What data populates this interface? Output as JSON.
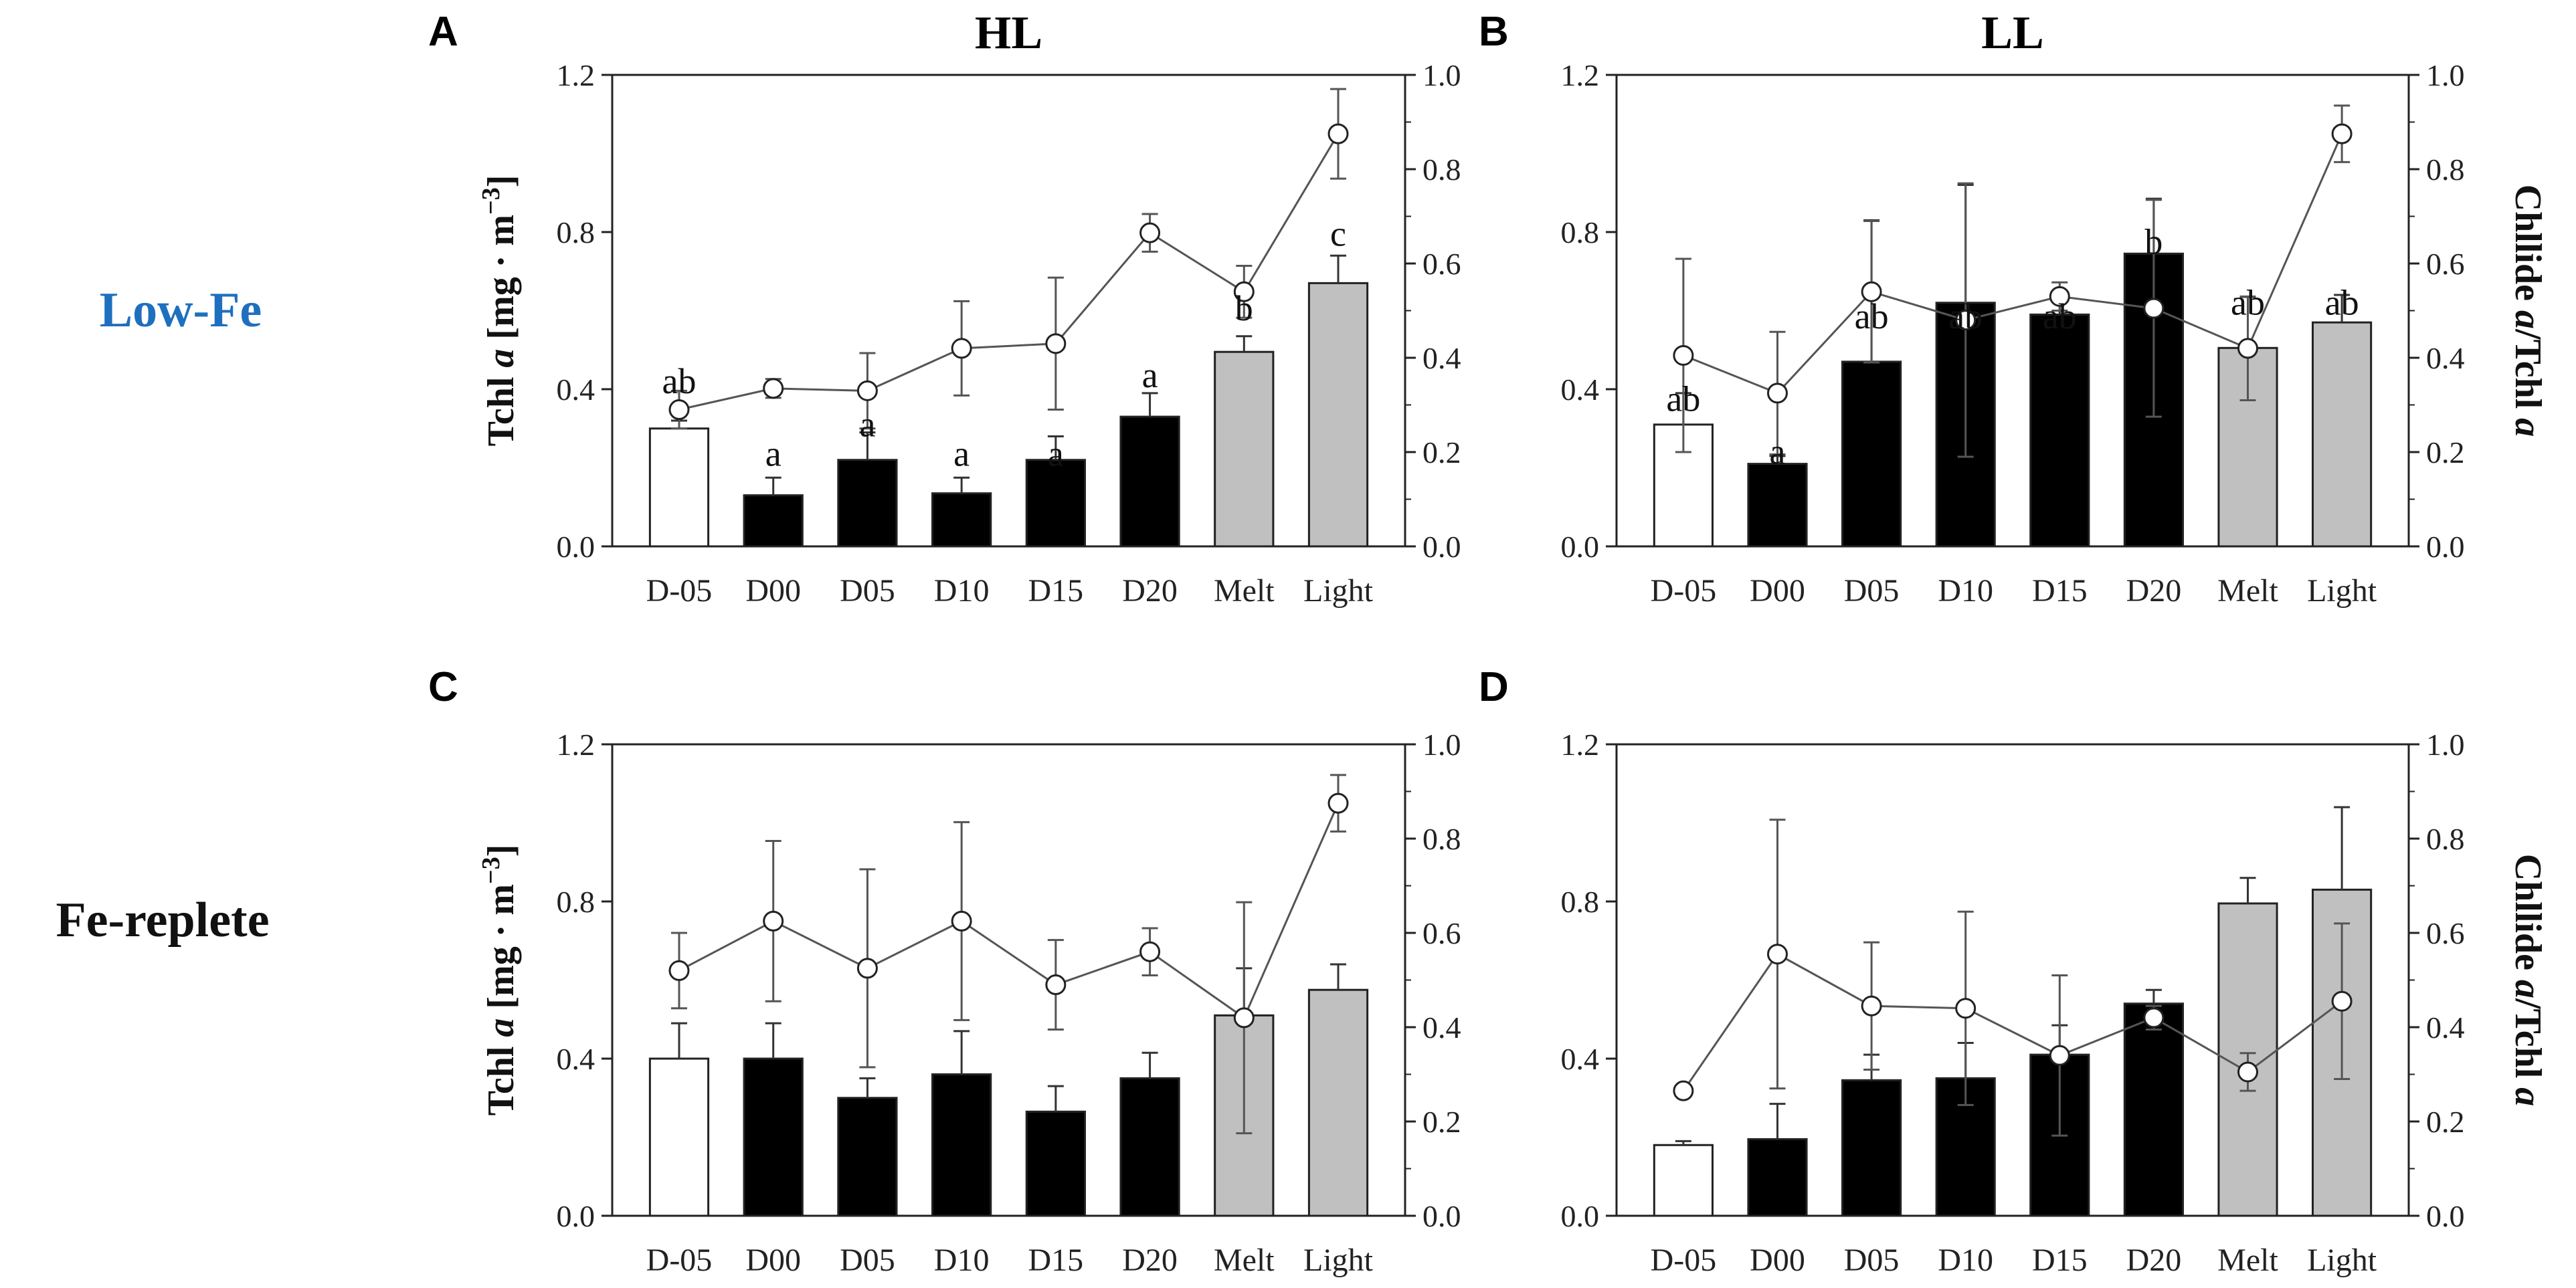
{
  "row_labels": {
    "low_fe": "Low-Fe",
    "fe_replete": "Fe-replete"
  },
  "colors": {
    "low_fe_label": "#1f6fbf",
    "fe_replete_label": "#111111",
    "pre_bar": "#ffffff",
    "dark_bar": "#000000",
    "grey_bar": "#c0c0c0",
    "line": "#555555"
  },
  "axis_titles": {
    "left": [
      "Tchl ",
      "a",
      " [mg · m",
      "−3",
      "]"
    ],
    "right": [
      "Chllide ",
      "a",
      "/Tchl ",
      "a"
    ]
  },
  "chart_data": [
    {
      "panel": "A",
      "title": "HL",
      "condition": "Low-Fe",
      "type": "bar+line",
      "categories": [
        "D-05",
        "D00",
        "D05",
        "D10",
        "D15",
        "D20",
        "Melt",
        "Light"
      ],
      "left_ticks": [
        "0.0",
        "0.4",
        "0.8",
        "1.2"
      ],
      "right_ticks": [
        "0.0",
        "0.2",
        "0.4",
        "0.6",
        "0.8",
        "1.0"
      ],
      "ylim_left": [
        0,
        1.2
      ],
      "ylim_right": [
        0,
        1.0
      ],
      "show_left_title": true,
      "show_right_title": false,
      "bars": [
        0.3,
        0.13,
        0.22,
        0.135,
        0.22,
        0.33,
        0.495,
        0.67
      ],
      "bar_err": [
        0.02,
        0.045,
        0.07,
        0.04,
        0.06,
        0.06,
        0.04,
        0.07
      ],
      "ratio": [
        0.29,
        0.335,
        0.33,
        0.42,
        0.43,
        0.665,
        0.54,
        0.875
      ],
      "ratio_err": [
        0.04,
        0.02,
        0.08,
        0.1,
        0.14,
        0.04,
        0.055,
        0.095
      ],
      "annotations": [
        {
          "text": "ab",
          "x_index": 0,
          "y": 0.39
        },
        {
          "text": "a",
          "x_index": 1,
          "y": 0.205
        },
        {
          "text": "a",
          "x_index": 2,
          "y": 0.28
        },
        {
          "text": "a",
          "x_index": 3,
          "y": 0.205
        },
        {
          "text": "a",
          "x_index": 4,
          "y": 0.205
        },
        {
          "text": "a",
          "x_index": 5,
          "y": 0.405
        },
        {
          "text": "b",
          "x_index": 6,
          "y": 0.575
        },
        {
          "text": "c",
          "x_index": 7,
          "y": 0.765
        }
      ]
    },
    {
      "panel": "B",
      "title": "LL",
      "condition": "Low-Fe",
      "type": "bar+line",
      "categories": [
        "D-05",
        "D00",
        "D05",
        "D10",
        "D15",
        "D20",
        "Melt",
        "Light"
      ],
      "left_ticks": [
        "0.0",
        "0.4",
        "0.8",
        "1.2"
      ],
      "right_ticks": [
        "0.0",
        "0.2",
        "0.4",
        "0.6",
        "0.8",
        "1.0"
      ],
      "ylim_left": [
        0,
        1.2
      ],
      "ylim_right": [
        0,
        1.0
      ],
      "show_left_title": false,
      "show_right_title": true,
      "bars": [
        0.31,
        0.21,
        0.47,
        0.62,
        0.59,
        0.745,
        0.505,
        0.57
      ],
      "bar_err": [
        0.08,
        0.02,
        0.36,
        0.3,
        0.05,
        0.14,
        0.13,
        0.07
      ],
      "ratio": [
        0.405,
        0.325,
        0.54,
        0.48,
        0.53,
        0.505,
        0.42,
        0.875
      ],
      "ratio_err": [
        0.205,
        0.13,
        0.15,
        0.29,
        0.03,
        0.23,
        0.11,
        0.06
      ],
      "annotations": [
        {
          "text": "ab",
          "x_index": 0,
          "y": 0.345
        },
        {
          "text": "a",
          "x_index": 1,
          "y": 0.21
        },
        {
          "text": "ab",
          "x_index": 2,
          "y": 0.555
        },
        {
          "text": "ab",
          "x_index": 3,
          "y": 0.555
        },
        {
          "text": "ab",
          "x_index": 4,
          "y": 0.555
        },
        {
          "text": "b",
          "x_index": 5,
          "y": 0.745
        },
        {
          "text": "ab",
          "x_index": 6,
          "y": 0.59
        },
        {
          "text": "ab",
          "x_index": 7,
          "y": 0.59
        }
      ]
    },
    {
      "panel": "C",
      "title": "",
      "condition": "Fe-replete",
      "type": "bar+line",
      "categories": [
        "D-05",
        "D00",
        "D05",
        "D10",
        "D15",
        "D20",
        "Melt",
        "Light"
      ],
      "left_ticks": [
        "0.0",
        "0.4",
        "0.8",
        "1.2"
      ],
      "right_ticks": [
        "0.0",
        "0.2",
        "0.4",
        "0.6",
        "0.8",
        "1.0"
      ],
      "ylim_left": [
        0,
        1.2
      ],
      "ylim_right": [
        0,
        1.0
      ],
      "show_left_title": true,
      "show_right_title": false,
      "bars": [
        0.4,
        0.4,
        0.3,
        0.36,
        0.265,
        0.35,
        0.51,
        0.575
      ],
      "bar_err": [
        0.09,
        0.09,
        0.05,
        0.11,
        0.065,
        0.065,
        0.12,
        0.065
      ],
      "ratio": [
        0.52,
        0.625,
        0.525,
        0.625,
        0.49,
        0.56,
        0.42,
        0.875
      ],
      "ratio_err": [
        0.08,
        0.17,
        0.21,
        0.21,
        0.095,
        0.05,
        0.245,
        0.06
      ],
      "annotations": []
    },
    {
      "panel": "D",
      "title": "",
      "condition": "Fe-replete",
      "type": "bar+line",
      "categories": [
        "D-05",
        "D00",
        "D05",
        "D10",
        "D15",
        "D20",
        "Melt",
        "Light"
      ],
      "left_ticks": [
        "0.0",
        "0.4",
        "0.8",
        "1.2"
      ],
      "right_ticks": [
        "0.0",
        "0.2",
        "0.4",
        "0.6",
        "0.8",
        "1.0"
      ],
      "ylim_left": [
        0,
        1.2
      ],
      "ylim_right": [
        0,
        1.0
      ],
      "show_left_title": false,
      "show_right_title": true,
      "bars": [
        0.18,
        0.195,
        0.345,
        0.35,
        0.41,
        0.54,
        0.795,
        0.83
      ],
      "bar_err": [
        0.01,
        0.09,
        0.065,
        0.09,
        0.075,
        0.035,
        0.065,
        0.21
      ],
      "ratio": [
        0.265,
        0.555,
        0.445,
        0.44,
        0.34,
        0.42,
        0.305,
        0.455
      ],
      "ratio_err": [
        0.0,
        0.285,
        0.135,
        0.205,
        0.17,
        0.025,
        0.04,
        0.165
      ],
      "annotations": []
    }
  ]
}
